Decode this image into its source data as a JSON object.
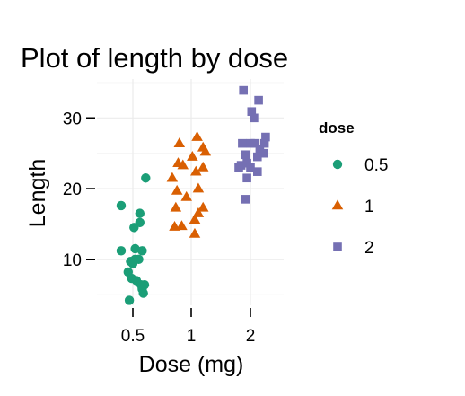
{
  "chart_data": {
    "type": "scatter",
    "title": "Plot of length  by dose",
    "xlabel": "Dose (mg)",
    "ylabel": "Length",
    "x_categories": [
      "0.5",
      "1",
      "2"
    ],
    "ylim": [
      3.5,
      35.5
    ],
    "y_ticks": [
      10,
      20,
      30
    ],
    "grid": true,
    "legend": {
      "title": "dose",
      "placement": "right"
    },
    "series": [
      {
        "name": "0.5",
        "color": "#1b9e77",
        "shape": "circle",
        "points": [
          {
            "x": 0.61,
            "y": 21.5
          },
          {
            "x": 0.4,
            "y": 17.6
          },
          {
            "x": 0.56,
            "y": 16.5
          },
          {
            "x": 0.56,
            "y": 15.2
          },
          {
            "x": 0.51,
            "y": 14.5
          },
          {
            "x": 0.52,
            "y": 11.5
          },
          {
            "x": 0.4,
            "y": 11.2
          },
          {
            "x": 0.58,
            "y": 11.2
          },
          {
            "x": 0.52,
            "y": 10.0
          },
          {
            "x": 0.55,
            "y": 10.0
          },
          {
            "x": 0.48,
            "y": 9.7
          },
          {
            "x": 0.5,
            "y": 9.4
          },
          {
            "x": 0.46,
            "y": 8.2
          },
          {
            "x": 0.49,
            "y": 7.3
          },
          {
            "x": 0.53,
            "y": 7.0
          },
          {
            "x": 0.6,
            "y": 6.4
          },
          {
            "x": 0.57,
            "y": 6.4
          },
          {
            "x": 0.58,
            "y": 5.8
          },
          {
            "x": 0.59,
            "y": 5.2
          },
          {
            "x": 0.47,
            "y": 4.2
          }
        ]
      },
      {
        "name": "1",
        "color": "#d95f02",
        "shape": "triangle",
        "points": [
          {
            "x": 1.05,
            "y": 27.3
          },
          {
            "x": 0.9,
            "y": 26.4
          },
          {
            "x": 1.1,
            "y": 25.8
          },
          {
            "x": 1.12,
            "y": 25.2
          },
          {
            "x": 1.01,
            "y": 24.5
          },
          {
            "x": 0.89,
            "y": 23.6
          },
          {
            "x": 0.93,
            "y": 23.3
          },
          {
            "x": 1.1,
            "y": 23.0
          },
          {
            "x": 1.04,
            "y": 22.4
          },
          {
            "x": 0.84,
            "y": 21.5
          },
          {
            "x": 1.06,
            "y": 20.0
          },
          {
            "x": 0.88,
            "y": 19.7
          },
          {
            "x": 0.96,
            "y": 18.8
          },
          {
            "x": 0.87,
            "y": 17.3
          },
          {
            "x": 1.1,
            "y": 17.3
          },
          {
            "x": 1.06,
            "y": 16.5
          },
          {
            "x": 1.03,
            "y": 15.6
          },
          {
            "x": 0.92,
            "y": 14.7
          },
          {
            "x": 0.86,
            "y": 14.6
          },
          {
            "x": 1.03,
            "y": 13.6
          }
        ]
      },
      {
        "name": "2",
        "color": "#7570b3",
        "shape": "square",
        "points": [
          {
            "x": 1.94,
            "y": 33.9
          },
          {
            "x": 2.07,
            "y": 32.5
          },
          {
            "x": 2.01,
            "y": 30.9
          },
          {
            "x": 2.03,
            "y": 30.0
          },
          {
            "x": 2.13,
            "y": 27.3
          },
          {
            "x": 1.93,
            "y": 26.4
          },
          {
            "x": 2.0,
            "y": 26.4
          },
          {
            "x": 2.04,
            "y": 26.4
          },
          {
            "x": 2.12,
            "y": 26.4
          },
          {
            "x": 2.08,
            "y": 25.5
          },
          {
            "x": 2.11,
            "y": 25.0
          },
          {
            "x": 1.96,
            "y": 24.8
          },
          {
            "x": 2.06,
            "y": 24.5
          },
          {
            "x": 1.97,
            "y": 23.6
          },
          {
            "x": 1.92,
            "y": 23.3
          },
          {
            "x": 1.9,
            "y": 23.0
          },
          {
            "x": 2.0,
            "y": 23.0
          },
          {
            "x": 2.06,
            "y": 22.4
          },
          {
            "x": 1.97,
            "y": 21.5
          },
          {
            "x": 1.96,
            "y": 18.5
          }
        ]
      }
    ]
  }
}
